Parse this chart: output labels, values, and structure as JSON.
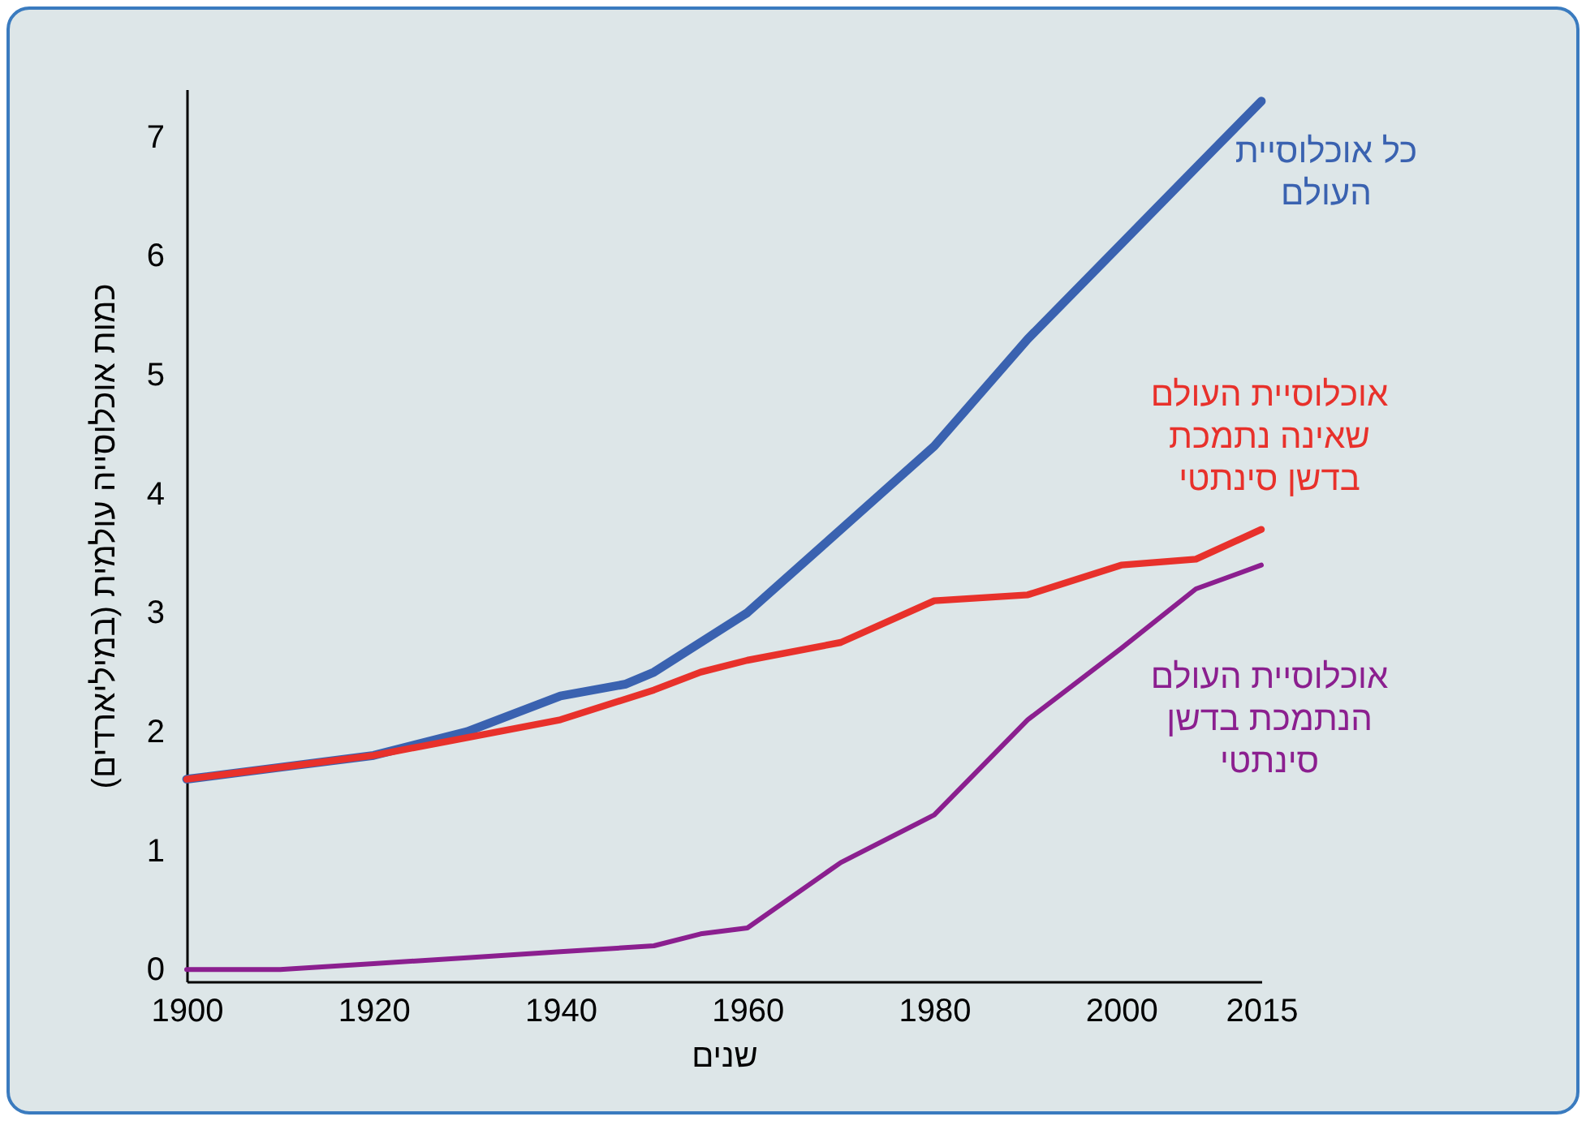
{
  "chart_data": {
    "type": "line",
    "xlabel": "שנים",
    "ylabel": "כמות אוכלוסייה עולמית (במיליארדים)",
    "xlim": [
      1900,
      2015
    ],
    "xticks": [
      1900,
      1920,
      1940,
      1960,
      1980,
      2000,
      2015
    ],
    "ylim": [
      -0.1,
      7.4
    ],
    "yticks": [
      0,
      1,
      2,
      3,
      4,
      5,
      6,
      7
    ],
    "grid": false,
    "legend": false,
    "line_style": "solid",
    "marker": "none",
    "series": [
      {
        "name": "כל אוכלוסיית העולם",
        "color": "#3a62b0",
        "x": [
          1900,
          1910,
          1920,
          1930,
          1940,
          1947,
          1950,
          1960,
          1970,
          1980,
          1990,
          2000,
          2010,
          2015
        ],
        "values": [
          1.6,
          1.7,
          1.8,
          2.0,
          2.3,
          2.4,
          2.5,
          3.0,
          3.7,
          4.4,
          5.3,
          6.1,
          6.9,
          7.3
        ]
      },
      {
        "name": "אוכלוסיית העולם שאינה נתמכת בדשן סינתטי",
        "color": "#e8312b",
        "x": [
          1900,
          1910,
          1920,
          1930,
          1940,
          1950,
          1955,
          1960,
          1970,
          1980,
          1990,
          2000,
          2008,
          2015
        ],
        "values": [
          1.6,
          1.7,
          1.8,
          1.95,
          2.1,
          2.35,
          2.5,
          2.6,
          2.75,
          3.1,
          3.15,
          3.4,
          3.45,
          3.7
        ]
      },
      {
        "name": "אוכלוסיית העולם הנתמכת בדשן סינתטי",
        "color": "#8b1f8f",
        "x": [
          1900,
          1910,
          1920,
          1930,
          1940,
          1950,
          1955,
          1960,
          1970,
          1980,
          1990,
          2000,
          2008,
          2015
        ],
        "values": [
          0,
          0,
          0.05,
          0.1,
          0.15,
          0.2,
          0.3,
          0.35,
          0.9,
          1.3,
          2.1,
          2.7,
          3.2,
          3.4
        ]
      }
    ]
  }
}
